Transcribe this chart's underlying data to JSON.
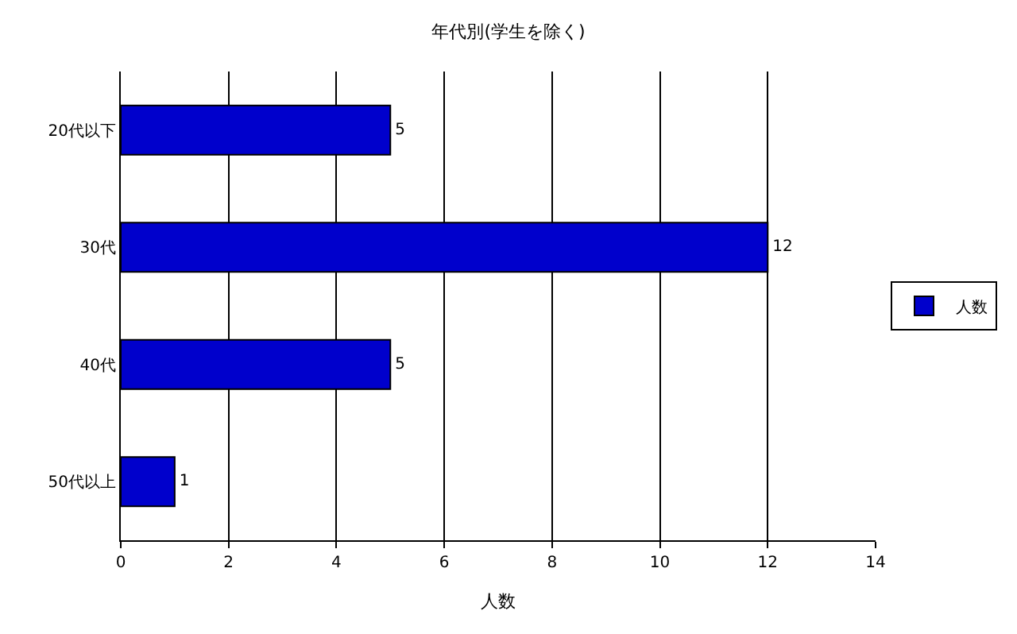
{
  "chart_data": {
    "type": "bar",
    "orientation": "horizontal",
    "title": "年代別(学生を除く)",
    "xlabel": "人数",
    "categories": [
      "20代以下",
      "30代",
      "40代",
      "50代以上"
    ],
    "series": [
      {
        "name": "人数",
        "color": "#0000cc",
        "values": [
          5,
          12,
          5,
          1
        ]
      }
    ],
    "xlim": [
      0,
      14
    ],
    "xticks": [
      0,
      2,
      4,
      6,
      8,
      10,
      12,
      14
    ],
    "grid": "x",
    "legend": "right",
    "data_labels": true
  }
}
